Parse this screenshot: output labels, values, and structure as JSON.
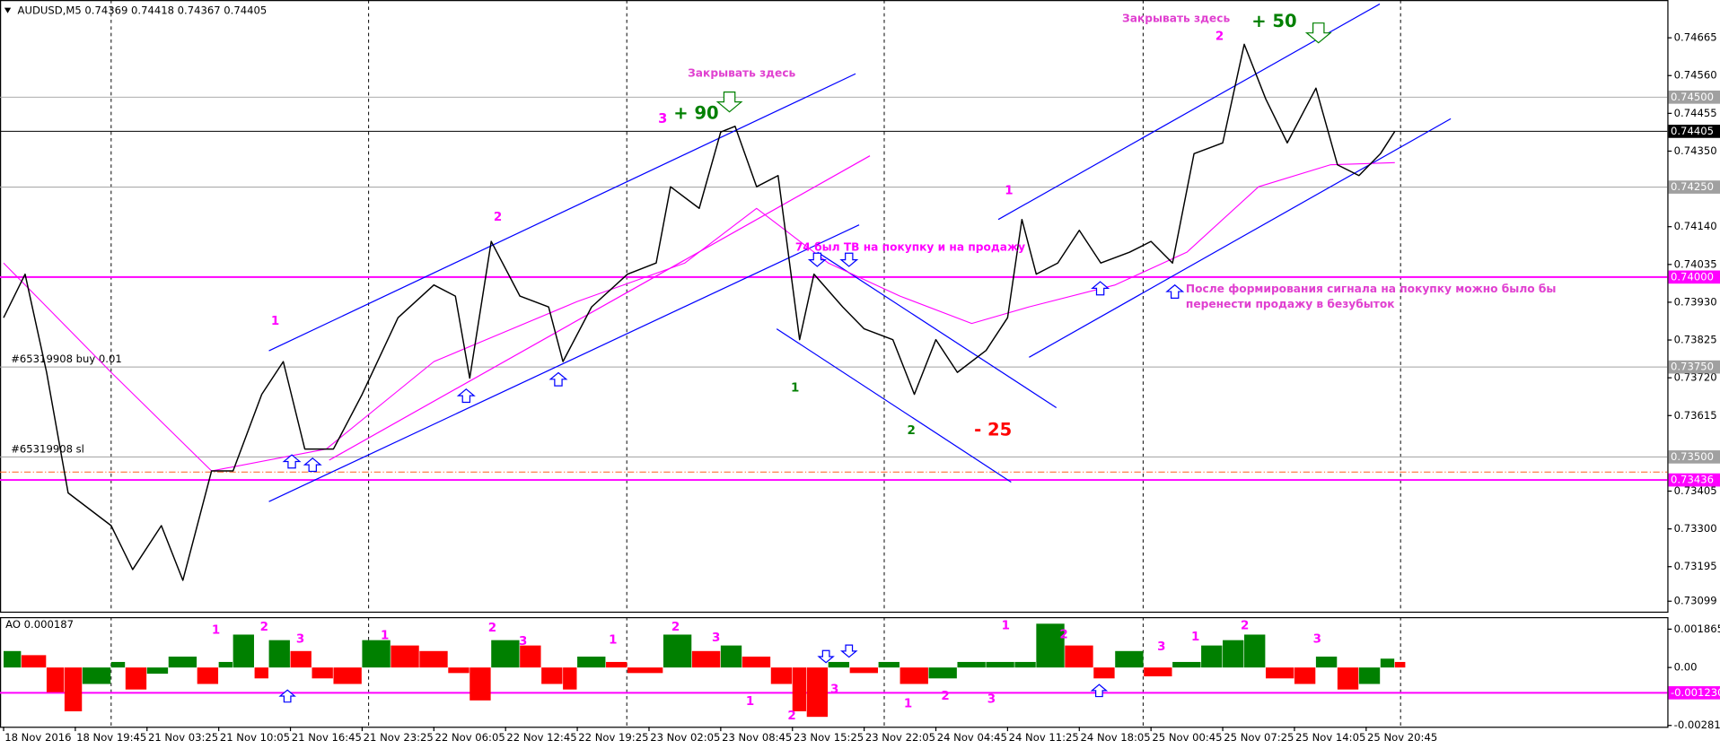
{
  "chart_data": [
    {
      "type": "line",
      "title": "AUDUSD,M5  0.74369 0.74418 0.74367 0.74405",
      "x": [
        0,
        0.3,
        0.6,
        0.9,
        1.5,
        1.8,
        2.2,
        2.5,
        2.9,
        3.2,
        3.6,
        3.9,
        4.2,
        4.6,
        5.0,
        5.5,
        6.0,
        6.3,
        6.5,
        6.8,
        7.2,
        7.6,
        7.8,
        8.2,
        8.7,
        9.1,
        9.3,
        9.7,
        10.0,
        10.2,
        10.5,
        10.8,
        11.1,
        11.3,
        11.7,
        12.0,
        12.4,
        12.7,
        13.0,
        13.3,
        13.7,
        14.0,
        14.2,
        14.4,
        14.7,
        15.0,
        15.3,
        15.7,
        16.0,
        16.3,
        16.6,
        17.0,
        17.3,
        17.6,
        17.9,
        18.3,
        18.6,
        18.9,
        19.2,
        19.4
      ],
      "series": [
        {
          "color": "#000000",
          "values": [
            0.73887,
            0.74008,
            0.73735,
            0.734,
            0.73309,
            0.73187,
            0.73309,
            0.73157,
            0.73461,
            0.73461,
            0.73674,
            0.73765,
            0.73522,
            0.73522,
            0.73674,
            0.73887,
            0.73978,
            0.73947,
            0.73719,
            0.74099,
            0.73947,
            0.73917,
            0.73765,
            0.73917,
            0.74008,
            0.74039,
            0.74251,
            0.74191,
            0.74403,
            0.74419,
            0.74251,
            0.74282,
            0.73826,
            0.74008,
            0.73917,
            0.73856,
            0.73826,
            0.73674,
            0.73826,
            0.73735,
            0.73796,
            0.73887,
            0.7416,
            0.74008,
            0.74039,
            0.7413,
            0.74039,
            0.74069,
            0.74099,
            0.74039,
            0.74343,
            0.74373,
            0.74647,
            0.74495,
            0.74373,
            0.74525,
            0.74312,
            0.74282,
            0.74343,
            0.74405
          ]
        }
      ],
      "ma": {
        "color": "#ff00ff",
        "x": [
          0,
          1.5,
          2.9,
          4.5,
          6.0,
          8.0,
          9.5,
          10.5,
          11.5,
          12.5,
          13.5,
          14.3,
          15.5,
          16.5,
          17.5,
          18.5,
          19.4
        ],
        "values": [
          0.74039,
          0.73735,
          0.73461,
          0.73522,
          0.73765,
          0.73932,
          0.74039,
          0.74191,
          0.74039,
          0.73947,
          0.73871,
          0.73917,
          0.73978,
          0.74069,
          0.74251,
          0.74312,
          0.74318
        ]
      },
      "xlim": [
        -0.05,
        23.2
      ],
      "xticks": [
        {
          "value": 0,
          "label": "18 Nov 2016"
        },
        {
          "value": 1,
          "label": "18 Nov 19:45"
        },
        {
          "value": 2,
          "label": "21 Nov 03:25"
        },
        {
          "value": 3,
          "label": "21 Nov 10:05"
        },
        {
          "value": 4,
          "label": "21 Nov 16:45"
        },
        {
          "value": 5,
          "label": "21 Nov 23:25"
        },
        {
          "value": 6,
          "label": "22 Nov 06:05"
        },
        {
          "value": 7,
          "label": "22 Nov 12:45"
        },
        {
          "value": 8,
          "label": "22 Nov 19:25"
        },
        {
          "value": 9,
          "label": "23 Nov 02:05"
        },
        {
          "value": 10,
          "label": "23 Nov 08:45"
        },
        {
          "value": 11,
          "label": "23 Nov 15:25"
        },
        {
          "value": 12,
          "label": "23 Nov 22:05"
        },
        {
          "value": 13,
          "label": "24 Nov 04:45"
        },
        {
          "value": 14,
          "label": "24 Nov 11:25"
        },
        {
          "value": 15,
          "label": "24 Nov 18:05"
        },
        {
          "value": 16,
          "label": "25 Nov 00:45"
        },
        {
          "value": 17,
          "label": "25 Nov 07:25"
        },
        {
          "value": 18,
          "label": "25 Nov 14:05"
        },
        {
          "value": 19,
          "label": "25 Nov 20:45"
        }
      ],
      "ylim": [
        0.7307,
        0.7477
      ],
      "yticks": [
        0.74665,
        {
          "value": 0.7456,
          "label": "0.74560"
        },
        0.74455,
        {
          "value": 0.7435,
          "label": "0.74350"
        },
        {
          "value": 0.7414,
          "label": "0.74140"
        },
        0.74035,
        {
          "value": 0.7393,
          "label": "0.73930"
        },
        0.73825,
        {
          "value": 0.7372,
          "label": "0.73720"
        },
        0.73615,
        0.73405,
        {
          "value": 0.733,
          "label": "0.73300"
        },
        0.73195,
        0.73099
      ],
      "levels": [
        {
          "value": 0.745,
          "label": "0.74500",
          "color": "#a0a0a0"
        },
        {
          "value": 0.74405,
          "label": "0.74405",
          "color": "#000000"
        },
        {
          "value": 0.7425,
          "label": "0.74250",
          "color": "#a0a0a0"
        },
        {
          "value": 0.74,
          "label": "0.74000",
          "color": "#ff00ff"
        },
        {
          "value": 0.7375,
          "label": "0.73750",
          "color": "#a0a0a0"
        },
        {
          "value": 0.735,
          "label": "0.73500",
          "color": "#a0a0a0"
        },
        {
          "value": 0.73436,
          "label": "0.73436",
          "color": "#ff00ff"
        }
      ],
      "stop_loss": {
        "value": 0.73458,
        "color": "#ff6020"
      },
      "order_labels": [
        "#65319908 buy 0.01",
        "#65319908 sl"
      ],
      "separators": [
        1.5,
        5.09,
        8.69,
        12.28,
        15.89,
        19.48
      ],
      "trendlines": [
        {
          "color": "#0000ff",
          "x": [
            3.7,
            11.88
          ],
          "y": [
            0.73795,
            0.74565
          ]
        },
        {
          "color": "#0000ff",
          "x": [
            3.7,
            11.93
          ],
          "y": [
            0.73376,
            0.74145
          ]
        },
        {
          "color": "#ff00ff",
          "x": [
            4.54,
            12.08
          ],
          "y": [
            0.73491,
            0.74337
          ]
        },
        {
          "color": "#0000ff",
          "x": [
            10.78,
            14.05
          ],
          "y": [
            0.73856,
            0.7343
          ]
        },
        {
          "color": "#0000ff",
          "x": [
            11.35,
            14.68
          ],
          "y": [
            0.74069,
            0.73637
          ]
        },
        {
          "color": "#0000ff",
          "x": [
            13.87,
            19.19
          ],
          "y": [
            0.7416,
            0.74759
          ]
        },
        {
          "color": "#0000ff",
          "x": [
            14.3,
            20.18
          ],
          "y": [
            0.73777,
            0.7444
          ]
        }
      ],
      "annotations": [
        {
          "text": "Закрывать здесь",
          "color": "#e040d0"
        },
        {
          "text": "3",
          "color": "#ff00ff"
        },
        {
          "text": "+ 90",
          "color": "#008000"
        },
        {
          "text": "2",
          "color": "#ff00ff"
        },
        {
          "text": "1",
          "color": "#ff00ff"
        },
        {
          "text": "Закрывать здесь",
          "color": "#e040d0"
        },
        {
          "text": "2",
          "color": "#ff00ff"
        },
        {
          "text": "+ 50",
          "color": "#008000"
        },
        {
          "text": "1",
          "color": "#ff00ff"
        },
        {
          "text": "74 был ТВ на покупку и на продажу",
          "color": "#ff00ff"
        },
        {
          "text": "После формирования сигнала на покупку можно было бы",
          "color": "#e040d0"
        },
        {
          "text": "перенести продажу в безубыток",
          "color": "#e040d0"
        },
        {
          "text": "1",
          "color": "#008000"
        },
        {
          "text": "2",
          "color": "#008000"
        },
        {
          "text": "- 25",
          "color": "#ff0000"
        }
      ]
    },
    {
      "type": "bar",
      "title": "AO 0.000187",
      "x": [
        0,
        0.25,
        0.6,
        0.85,
        1.1,
        1.5,
        1.7,
        2.0,
        2.3,
        2.7,
        3.0,
        3.2,
        3.5,
        3.7,
        4.0,
        4.3,
        4.6,
        5.0,
        5.4,
        5.8,
        6.2,
        6.5,
        6.8,
        7.2,
        7.5,
        7.8,
        8.0,
        8.4,
        8.7,
        9.2,
        9.6,
        10.0,
        10.3,
        10.7,
        11.0,
        11.2,
        11.5,
        11.8,
        12.2,
        12.5,
        12.9,
        13.3,
        13.7,
        14.1,
        14.4,
        14.8,
        15.2,
        15.5,
        15.9,
        16.3,
        16.7,
        17.0,
        17.3,
        17.6,
        18.0,
        18.3,
        18.6,
        18.9,
        19.2,
        19.4
      ],
      "values": [
        0.0008,
        0.0006,
        -0.0012,
        -0.00213,
        -0.0008,
        0.00027,
        -0.00107,
        -0.0003,
        0.00053,
        -0.0008,
        0.00027,
        0.0016,
        -0.00053,
        0.00133,
        0.0008,
        -0.00053,
        -0.0008,
        0.00133,
        0.00107,
        0.0008,
        -0.00027,
        -0.0016,
        0.00133,
        0.00107,
        -0.0008,
        -0.00107,
        0.00053,
        0.00027,
        -0.00027,
        0.0016,
        0.0008,
        0.00107,
        0.00053,
        -0.0008,
        -0.00213,
        -0.0024,
        0.00027,
        -0.00027,
        0.00027,
        -0.0008,
        -0.00053,
        0.00027,
        0.00027,
        0.00027,
        0.00213,
        0.00107,
        -0.00053,
        0.0008,
        -0.00043,
        0.00027,
        0.00107,
        0.00133,
        0.0016,
        -0.00053,
        -0.0008,
        0.00053,
        -0.00107,
        -0.0008,
        0.00043,
        0.00027
      ],
      "up_color": "#008000",
      "down_color": "#ff0000",
      "ylim": [
        -0.00288,
        0.00245
      ],
      "yticks": [
        0.001865,
        {
          "value": 0,
          "label": "0.00"
        },
        -0.002818
      ],
      "levels": [
        {
          "value": -0.00123,
          "label": "-0.001230",
          "color": "#ff00ff"
        }
      ],
      "annotations": [
        "1",
        "2",
        "3",
        "1",
        "2",
        "3",
        "1",
        "2",
        "3",
        "1",
        "2",
        "3",
        "1",
        "2",
        "3",
        "1",
        "2",
        "3",
        "1",
        "2",
        "3"
      ],
      "annotation_color": "#ff00ff"
    }
  ]
}
